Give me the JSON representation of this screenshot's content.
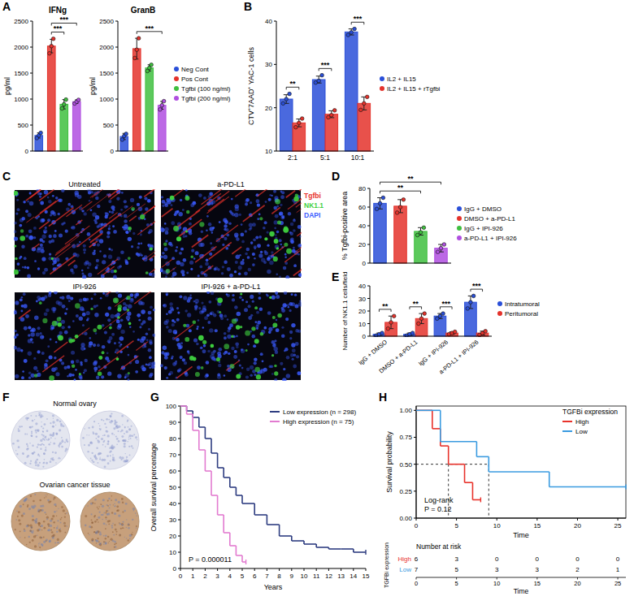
{
  "panel_labels": [
    "A",
    "B",
    "C",
    "D",
    "E",
    "F",
    "G",
    "H"
  ],
  "chart_data": [
    {
      "type": "bar",
      "title": "IFNg",
      "y_label": "pg/ml",
      "categories": [
        null,
        null,
        null,
        null
      ],
      "values": [
        300,
        2020,
        900,
        950
      ],
      "errors": [
        50,
        130,
        90,
        35
      ],
      "points": [
        [
          250,
          300,
          350
        ],
        [
          1880,
          2020,
          2160
        ],
        [
          820,
          900,
          990
        ],
        [
          915,
          950,
          985
        ]
      ],
      "colors": [
        "#2a4fd8",
        "#e4322b",
        "#3fbf3f",
        "#b04fe0"
      ],
      "ylim": [
        0,
        2500
      ],
      "yticks": [
        0,
        500,
        1000,
        1500,
        2000,
        2500
      ],
      "tick_labels": "y",
      "significance": [
        {
          "from": 1,
          "to": 2,
          "label": "***"
        },
        {
          "from": 1,
          "to": 3,
          "label": "***"
        }
      ]
    },
    {
      "type": "bar",
      "title": "GranB",
      "y_label": "pg/ml",
      "categories": [
        "Neg Cont",
        "Pos Cont",
        "Tgfbi (100 ng/ml)",
        "Tgfbi (200 ng/ml)"
      ],
      "values": [
        280,
        1970,
        1600,
        880
      ],
      "errors": [
        60,
        200,
        60,
        75
      ],
      "points": [
        [
          220,
          290,
          330
        ],
        [
          1790,
          1950,
          2170
        ],
        [
          1540,
          1600,
          1660
        ],
        [
          800,
          880,
          960
        ]
      ],
      "colors": [
        "#2a4fd8",
        "#e4322b",
        "#3fbf3f",
        "#b04fe0"
      ],
      "ylim": [
        0,
        2500
      ],
      "yticks": [
        0,
        500,
        1000,
        1500,
        2000,
        2500
      ],
      "tick_labels": "y",
      "legend": "right",
      "significance": [
        {
          "from": 1,
          "to": 3,
          "label": "***"
        }
      ]
    },
    {
      "type": "bar",
      "y_label": "CTV⁺7AAD⁺ YAC-1 cells",
      "categories": [
        "2:1",
        "5:1",
        "10:1"
      ],
      "series": [
        {
          "name": "IL2 + IL15",
          "color": "#2a4fd8",
          "values": [
            22,
            26.5,
            37.5
          ],
          "errors": [
            1,
            0.8,
            0.7
          ],
          "points": [
            [
              21,
              22,
              23.2
            ],
            [
              25.8,
              26.2,
              27.5
            ],
            [
              36.8,
              37.4,
              38.2
            ]
          ]
        },
        {
          "name": "IL2 + IL15 + rTgfbi",
          "color": "#e4322b",
          "values": [
            16.5,
            18.5,
            21
          ],
          "errors": [
            0.9,
            0.8,
            1.5
          ],
          "points": [
            [
              15.5,
              16.5,
              17.5
            ],
            [
              17.8,
              18.3,
              19.4
            ],
            [
              19.5,
              21,
              22.5
            ]
          ]
        }
      ],
      "ylim": [
        10,
        40
      ],
      "yticks": [
        10,
        20,
        30,
        40
      ],
      "legend": "right",
      "significance": [
        {
          "category": 0,
          "label": "**"
        },
        {
          "category": 1,
          "label": "***"
        },
        {
          "category": 2,
          "label": "***"
        }
      ]
    },
    {
      "type": "bar",
      "y_label": "% Tgfbi-positive area",
      "categories": [
        "IgG + DMSO",
        "DMSO + a-PD-L1",
        "IgG + IPI-926",
        "a-PD-L1 + IPI-926"
      ],
      "values": [
        64,
        61,
        34,
        16
      ],
      "errors": [
        6,
        7,
        4,
        4
      ],
      "points": [
        [
          58,
          64,
          70
        ],
        [
          54,
          60,
          68
        ],
        [
          30,
          33,
          38
        ],
        [
          12,
          16,
          20
        ]
      ],
      "colors": [
        "#2a4fd8",
        "#e4322b",
        "#3fbf3f",
        "#b04fe0"
      ],
      "ylim": [
        0,
        80
      ],
      "yticks": [
        0,
        20,
        40,
        60,
        80
      ],
      "tick_labels": "y",
      "legend": "right",
      "significance": [
        {
          "from": 0,
          "to": 2,
          "label": "**"
        },
        {
          "from": 0,
          "to": 3,
          "label": "**"
        }
      ]
    },
    {
      "type": "bar",
      "y_label": "Number of NK1.1 cells/field",
      "categories": [
        "IgG + DMSO",
        "DMSO + a-PD-L1",
        "IgG + IPI-926",
        "a-PD-L1 + IPI-926"
      ],
      "series": [
        {
          "name": "Intratumoral",
          "color": "#2a4fd8",
          "values": [
            1.5,
            1.5,
            16,
            27
          ],
          "errors": [
            1,
            1,
            2,
            5
          ],
          "points": [
            [
              0.5,
              1.5,
              2.5
            ],
            [
              0.5,
              1.5,
              2.5
            ],
            [
              14,
              16,
              18
            ],
            [
              22,
              27,
              32
            ]
          ]
        },
        {
          "name": "Peritumoral",
          "color": "#e4322b",
          "values": [
            11,
            14,
            2.5,
            2.5
          ],
          "errors": [
            5,
            4,
            1,
            1.5
          ],
          "points": [
            [
              6,
              11,
              16
            ],
            [
              10,
              14,
              18
            ],
            [
              1.5,
              2.5,
              3.5
            ],
            [
              1,
              2.5,
              4
            ]
          ]
        }
      ],
      "ylim": [
        0,
        40
      ],
      "yticks": [
        0,
        10,
        20,
        30,
        40
      ],
      "legend": "right",
      "significance": [
        {
          "category": 0,
          "label": "**"
        },
        {
          "category": 1,
          "label": "**"
        },
        {
          "category": 2,
          "label": "***"
        },
        {
          "category": 3,
          "label": "***"
        }
      ]
    },
    {
      "type": "survival",
      "x_label": "Years",
      "y_label": "Overall survival percentage",
      "xlim": [
        0,
        15
      ],
      "xticks": [
        0,
        1,
        2,
        3,
        4,
        5,
        6,
        7,
        8,
        9,
        10,
        11,
        12,
        13,
        14,
        15
      ],
      "ylim": [
        0,
        100
      ],
      "yticks": [
        0,
        10,
        20,
        30,
        40,
        50,
        60,
        70,
        80,
        90,
        100
      ],
      "legend": "upper right",
      "annotations": [
        "P = 0.000011"
      ],
      "series": [
        {
          "name": "Low expression (n = 298)",
          "color": "#2e3d80",
          "x": [
            0,
            0.5,
            1,
            1.5,
            2,
            2.5,
            3,
            3.5,
            4,
            4.5,
            5,
            6,
            7,
            8,
            9,
            10,
            11,
            12,
            13,
            14,
            15
          ],
          "values": [
            100,
            97,
            93,
            87,
            80,
            71,
            62,
            56,
            50,
            45,
            40,
            33,
            27,
            20,
            17,
            15,
            13,
            12,
            12,
            10,
            10
          ]
        },
        {
          "name": "High expression (n = 75)",
          "color": "#e27bd0",
          "x": [
            0,
            0.5,
            1,
            1.5,
            2,
            2.5,
            3,
            3.5,
            4,
            4.5,
            5,
            5.3
          ],
          "values": [
            100,
            95,
            85,
            73,
            60,
            45,
            33,
            22,
            14,
            8,
            4,
            4
          ]
        }
      ]
    },
    {
      "type": "survival",
      "x_label": "Time",
      "y_label": "Survival probability",
      "legend_title": "TGFBi expression",
      "legend": "upper right",
      "annotations": [
        "Log-rank",
        "P = 0.12"
      ],
      "xlim": [
        0,
        26
      ],
      "xticks": [
        0,
        5,
        10,
        15,
        20,
        25
      ],
      "ylim": [
        0,
        1.04
      ],
      "yticks": [
        {
          "value": 0,
          "label": "0.00"
        },
        {
          "value": 0.25,
          "label": "0.25"
        },
        {
          "value": 0.5,
          "label": "0.50"
        },
        {
          "value": 0.75,
          "label": "0.75"
        },
        {
          "value": 1,
          "label": "1.00"
        }
      ],
      "series": [
        {
          "name": "High",
          "color": "#e8322b",
          "x": [
            0,
            2,
            3,
            4,
            6,
            7,
            8
          ],
          "values": [
            1,
            0.83,
            0.67,
            0.5,
            0.33,
            0.17,
            0.17
          ]
        },
        {
          "name": "Low",
          "color": "#3a9be0",
          "x": [
            0,
            3,
            7.5,
            9,
            16.5,
            26
          ],
          "values": [
            1,
            0.71,
            0.57,
            0.43,
            0.29,
            0.29
          ]
        }
      ],
      "risk_table": {
        "title": "Number at risk",
        "y_label": "TGFBi expression",
        "values": [
          [
            6,
            3,
            0,
            0,
            0,
            0
          ],
          [
            7,
            5,
            3,
            3,
            2,
            1
          ]
        ]
      }
    }
  ],
  "micrographs": {
    "labels": [
      "Untreated",
      "a-PD-L1",
      "IPI-926",
      "IPI-926 + a-PD-L1"
    ],
    "channels": [
      {
        "name": "Tgfbi",
        "color": "#e8322b"
      },
      {
        "name": "NK1.1",
        "color": "#3fd13f"
      },
      {
        "name": "DAPI",
        "color": "#3a5bff"
      }
    ]
  },
  "tissue_cores": {
    "groups": [
      "Normal ovary",
      "Ovarian cancer tissue"
    ]
  }
}
